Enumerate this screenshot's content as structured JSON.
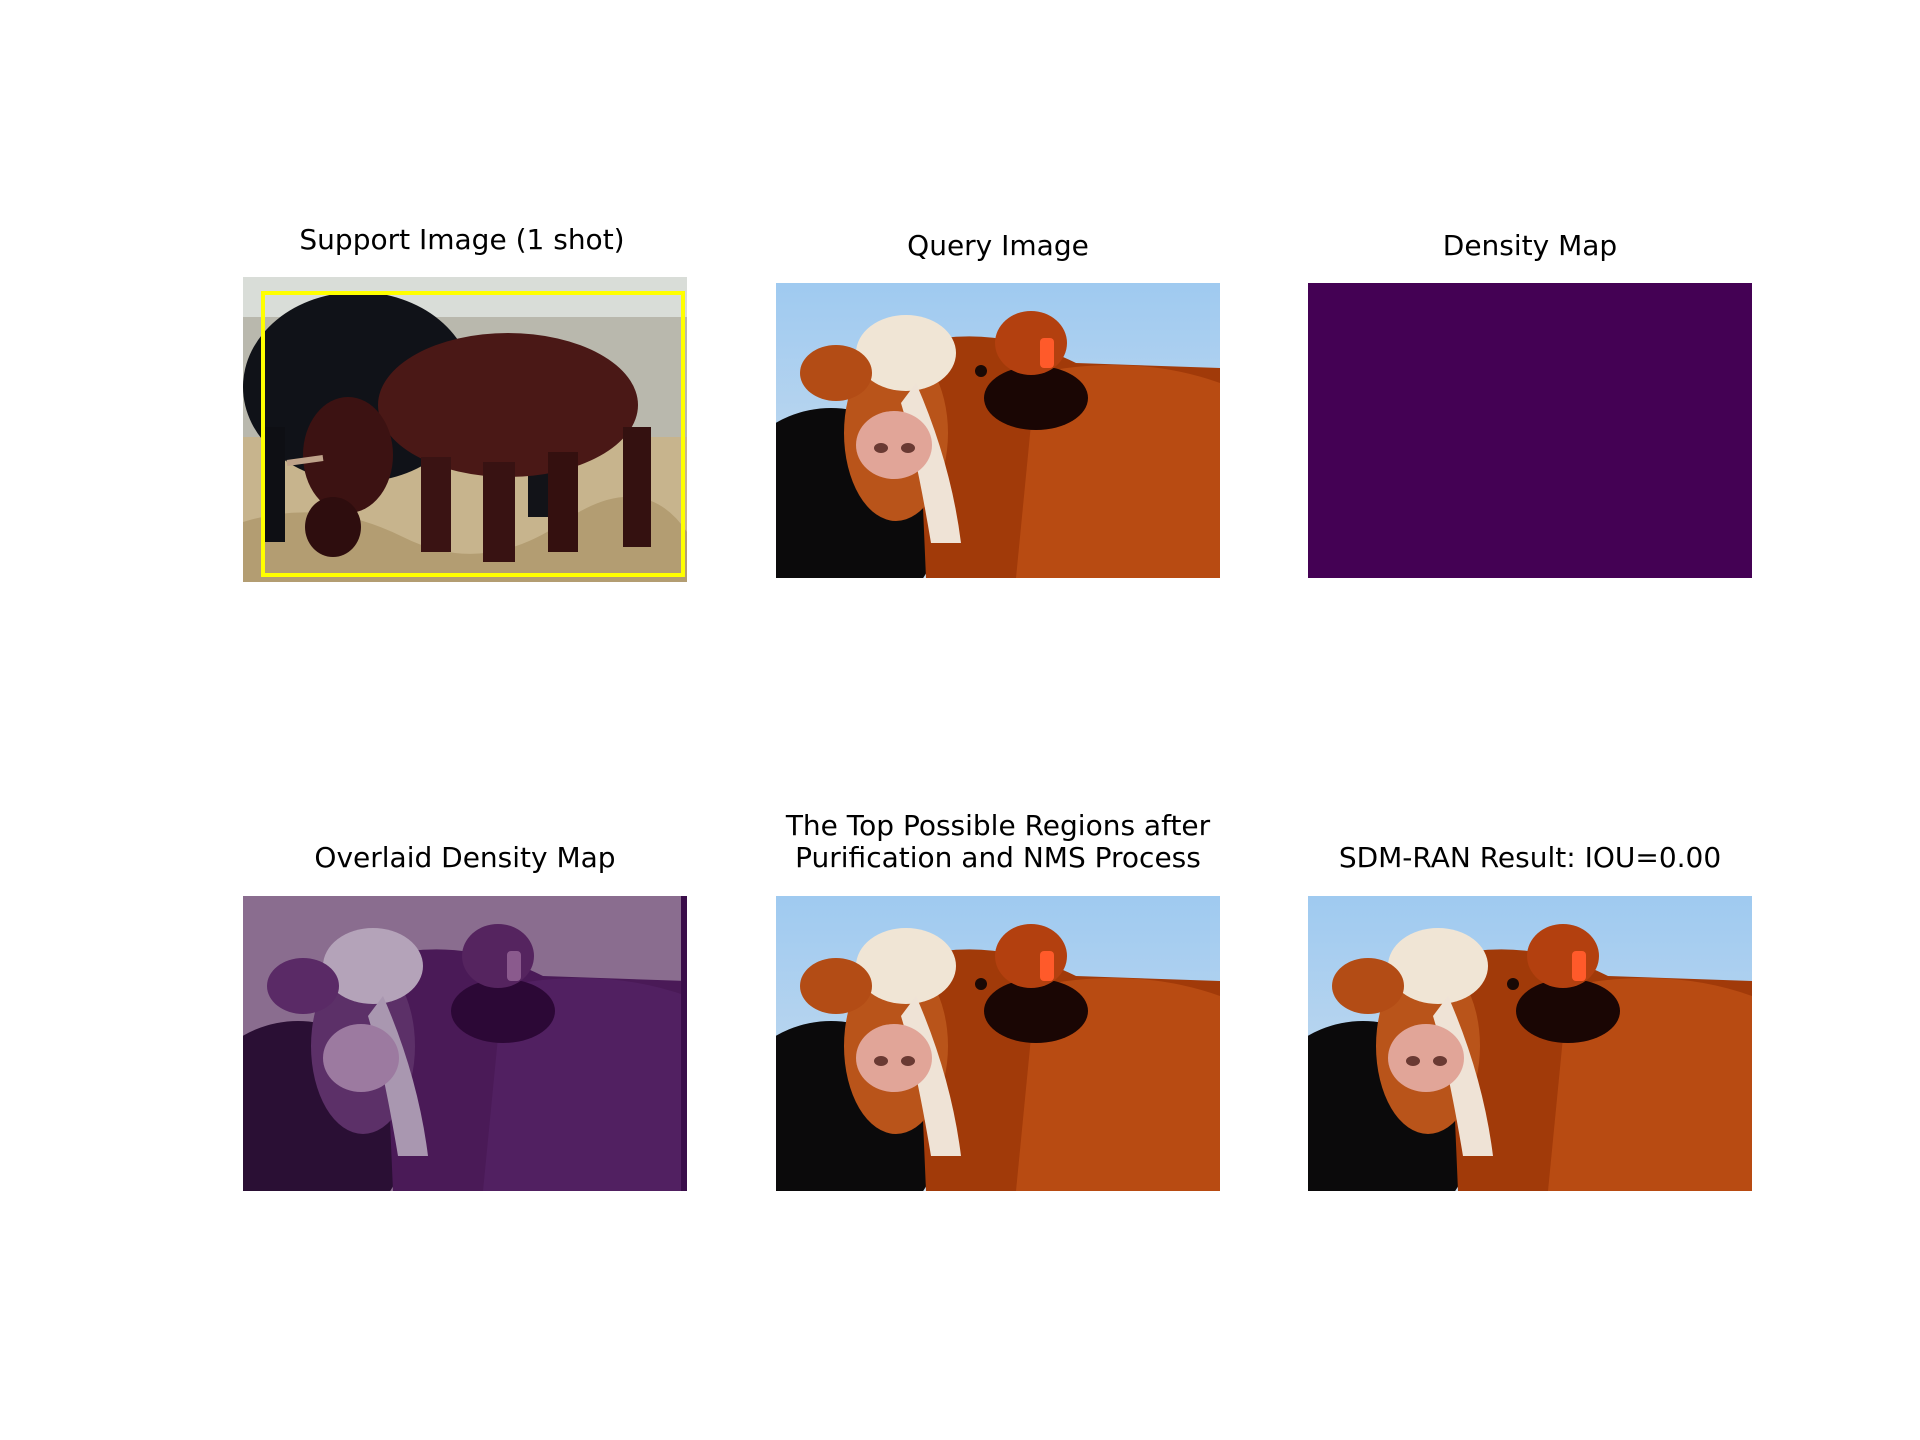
{
  "figure": {
    "panels": [
      {
        "title": "Support Image (1 shot)",
        "content": "support image of a brown cow grazing with a yellow bounding box",
        "box_color": "#ffff00"
      },
      {
        "title": "Query Image",
        "content": "query photo of a brown and white cow face with orange ear tag"
      },
      {
        "title": "Density Map",
        "content": "uniform dark purple density map",
        "fill_color": "#440154"
      },
      {
        "title": "Overlaid Density Map",
        "content": "query photo tinted purple by density overlay",
        "fill_color": "#440154"
      },
      {
        "title": "The Top Possible Regions after\nPurification and NMS Process",
        "content": "query photo with no regions drawn"
      },
      {
        "title": "SDM-RAN Result: IOU=0.00",
        "content": "query photo result"
      }
    ]
  }
}
